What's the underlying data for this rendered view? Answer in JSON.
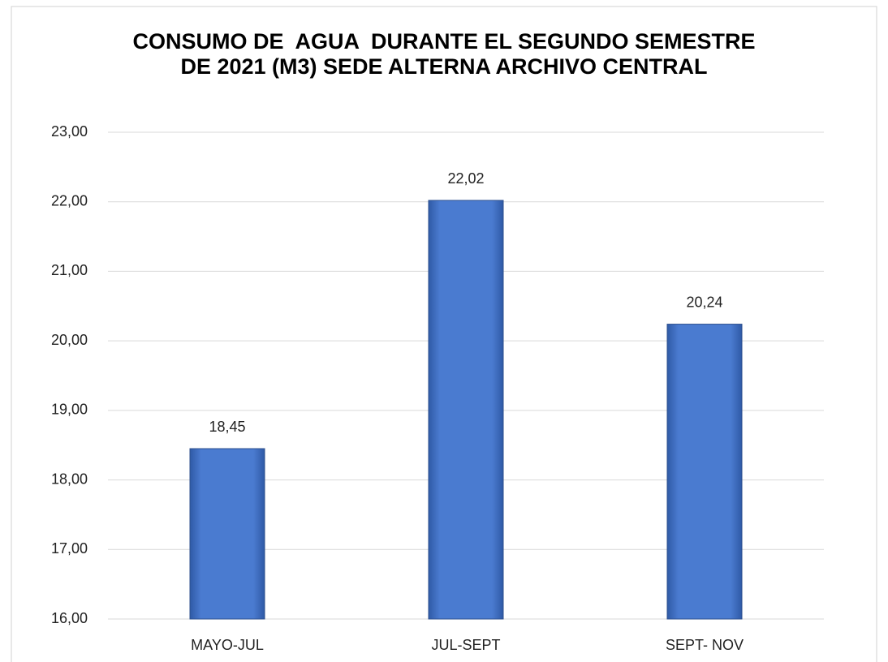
{
  "chart_data": {
    "type": "bar",
    "title": "CONSUMO DE  AGUA  DURANTE EL SEGUNDO SEMESTRE DE 2021 (M3) SEDE ALTERNA ARCHIVO CENTRAL",
    "categories": [
      "MAYO-JUL",
      "JUL-SEPT",
      "SEPT- NOV"
    ],
    "values": [
      18.45,
      22.02,
      20.24
    ],
    "value_labels": [
      "18,45",
      "22,02",
      "20,24"
    ],
    "color": "#4a7bd0",
    "ylim": [
      16,
      23
    ],
    "yticks": [
      {
        "value": 16,
        "label": "16,00"
      },
      {
        "value": 17,
        "label": "17,00"
      },
      {
        "value": 18,
        "label": "18,00"
      },
      {
        "value": 19,
        "label": "19,00"
      },
      {
        "value": 20,
        "label": "20,00"
      },
      {
        "value": 21,
        "label": "21,00"
      },
      {
        "value": 22,
        "label": "22,00"
      },
      {
        "value": 23,
        "label": "23,00"
      }
    ],
    "grid": true
  }
}
